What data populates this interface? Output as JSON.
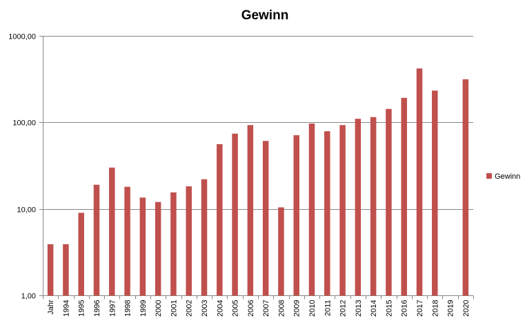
{
  "chart_data": {
    "type": "bar",
    "title": "Gewinn",
    "xlabel": "",
    "ylabel": "",
    "yscale": "log",
    "ylim": [
      1,
      1000
    ],
    "yticks": [
      "1,00",
      "10,00",
      "100,00",
      "1000,00"
    ],
    "grid": true,
    "legend": "right",
    "categories": [
      "Jahr",
      "1994",
      "1995",
      "1996",
      "1997",
      "1998",
      "1999",
      "2000",
      "2001",
      "2002",
      "2003",
      "2004",
      "2005",
      "2006",
      "2007",
      "2008",
      "2009",
      "2010",
      "2011",
      "2012",
      "2013",
      "2014",
      "2015",
      "2016",
      "2017",
      "2018",
      "2019",
      "2020"
    ],
    "series": [
      {
        "name": "Gewinn",
        "color": "#C0504D",
        "values": [
          3.9,
          3.9,
          9.0,
          19.0,
          30.0,
          18.0,
          13.5,
          12.0,
          15.5,
          18.2,
          22.0,
          56.0,
          74.0,
          93.0,
          61.0,
          10.4,
          71.0,
          97.0,
          79.0,
          93.0,
          110.0,
          115.0,
          143.0,
          192.0,
          420.0,
          233.0,
          null,
          315.0
        ]
      }
    ]
  }
}
